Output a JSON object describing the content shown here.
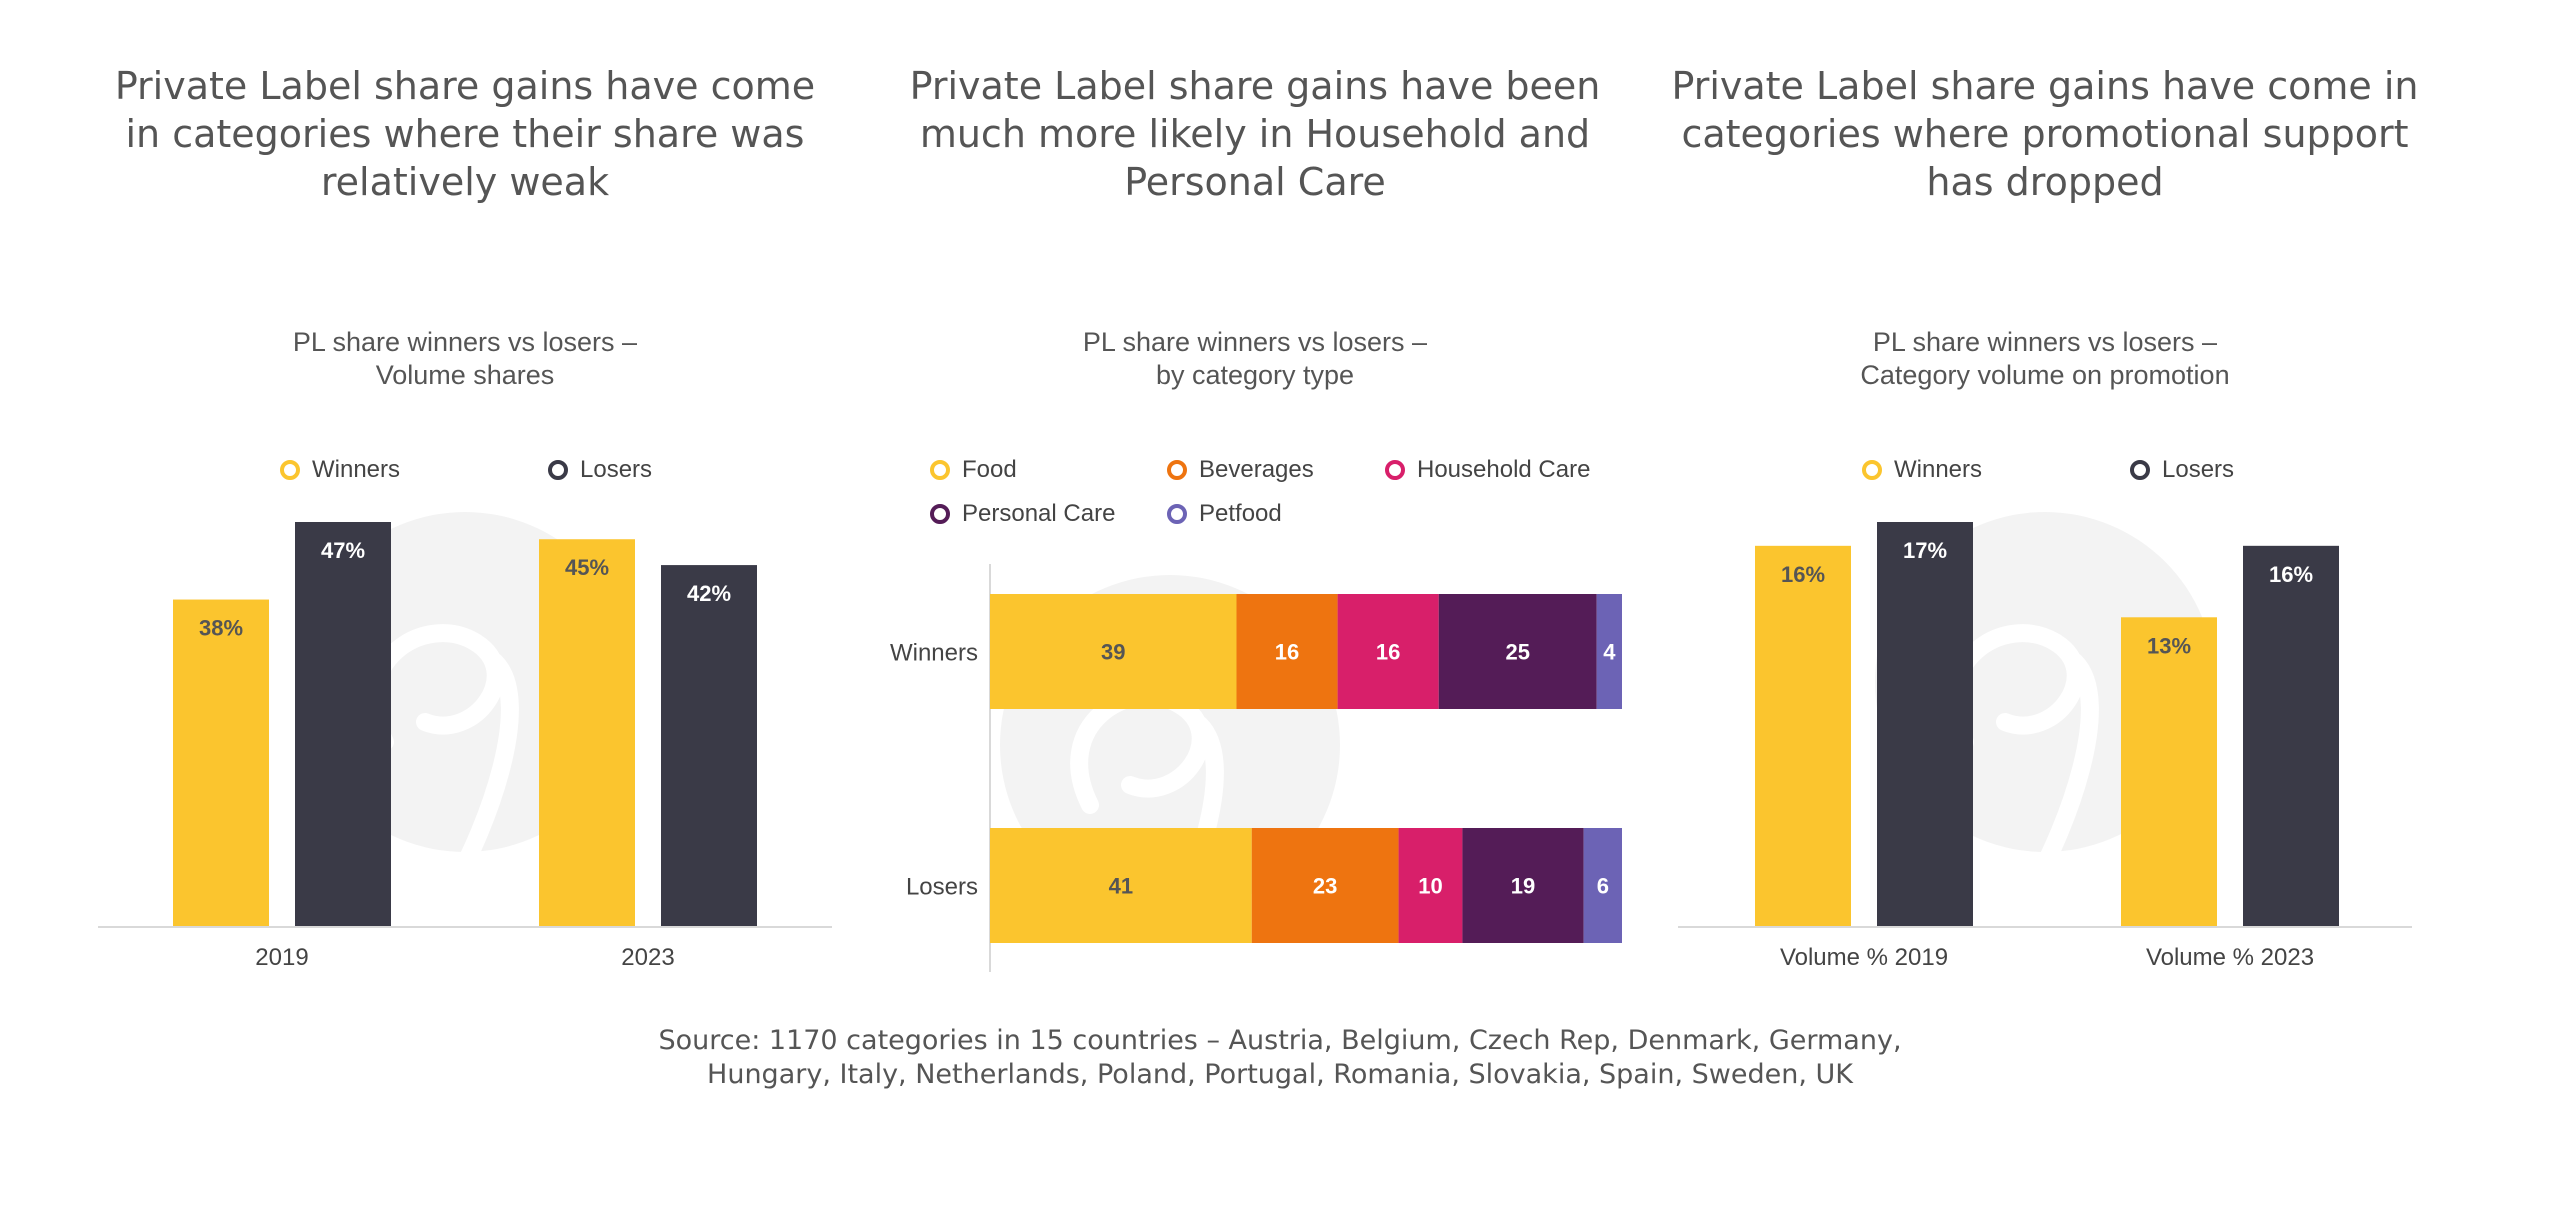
{
  "headings": [
    "Private Label share gains have come\nin categories where their share was\nrelatively weak",
    "Private Label share gains have been\nmuch more likely in Household and\nPersonal Care",
    "Private Label share gains have come in\ncategories where promotional support\nhas dropped"
  ],
  "source": "Source: 1170 categories in 15 countries – Austria, Belgium, Czech Rep, Denmark, Germany,\nHungary, Italy, Netherlands, Poland, Portugal, Romania, Slovakia, Spain, Sweden, UK",
  "colors": {
    "winners": "#FBC52E",
    "losers": "#3A3A47",
    "food": "#FBC52E",
    "beverages": "#EE7410",
    "household_care": "#D81F6A",
    "personal_care": "#541C57",
    "petfood": "#6C63B5",
    "axis": "#D9D9D9",
    "watermark": "#F3F3F3"
  },
  "chart_data": [
    {
      "type": "bar",
      "title": "PL share winners vs losers –\nVolume shares",
      "categories": [
        "2019",
        "2023"
      ],
      "series": [
        {
          "name": "Winners",
          "values": [
            38,
            45
          ]
        },
        {
          "name": "Losers",
          "values": [
            47,
            42
          ]
        }
      ],
      "value_labels": [
        [
          "38%",
          "45%"
        ],
        [
          "47%",
          "42%"
        ]
      ],
      "ylim": [
        0,
        47
      ],
      "legend": "top",
      "grid": false
    },
    {
      "type": "bar",
      "orientation": "horizontal",
      "stacked": true,
      "title": "PL share winners vs losers –\nby category type",
      "categories": [
        "Winners",
        "Losers"
      ],
      "series": [
        {
          "name": "Food",
          "values": [
            39,
            41
          ]
        },
        {
          "name": "Beverages",
          "values": [
            16,
            23
          ]
        },
        {
          "name": "Household Care",
          "values": [
            16,
            10
          ]
        },
        {
          "name": "Personal Care",
          "values": [
            25,
            19
          ]
        },
        {
          "name": "Petfood",
          "values": [
            4,
            6
          ]
        }
      ],
      "xlim": [
        0,
        100
      ],
      "legend": "top",
      "grid": false
    },
    {
      "type": "bar",
      "title": "PL share winners vs losers –\nCategory volume on promotion",
      "categories": [
        "Volume % 2019",
        "Volume % 2023"
      ],
      "series": [
        {
          "name": "Winners",
          "values": [
            16,
            13
          ]
        },
        {
          "name": "Losers",
          "values": [
            17,
            16
          ]
        }
      ],
      "value_labels": [
        [
          "16%",
          "13%"
        ],
        [
          "17%",
          "16%"
        ]
      ],
      "ylim": [
        0,
        17
      ],
      "legend": "top",
      "grid": false
    }
  ]
}
